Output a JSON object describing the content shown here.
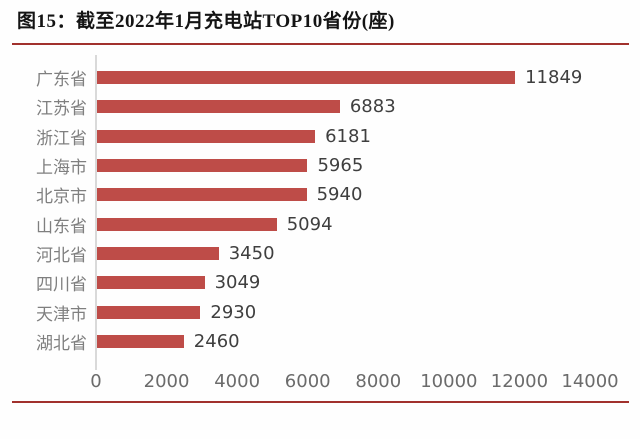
{
  "figure": {
    "title": "图15：截至2022年1月充电站TOP10省份(座)"
  },
  "colors": {
    "bar": "#be4c48",
    "divider_rule": "#a1312d",
    "axis_line": "#d9d9d9",
    "category_label": "#7f7f7f",
    "value_label": "#3f3f3f",
    "tick_label": "#6b6b6b",
    "title_text": "#141414",
    "background": "#fefefe"
  },
  "chart_data": {
    "type": "bar",
    "orientation": "horizontal",
    "title": "截至2022年1月充电站TOP10省份(座)",
    "xlabel": "",
    "ylabel": "",
    "categories": [
      "广东省",
      "江苏省",
      "浙江省",
      "上海市",
      "北京市",
      "山东省",
      "河北省",
      "四川省",
      "天津市",
      "湖北省"
    ],
    "values": [
      11849,
      6883,
      6181,
      5965,
      5940,
      5094,
      3450,
      3049,
      2930,
      2460
    ],
    "xlim": [
      0,
      14000
    ],
    "xticks": [
      0,
      2000,
      4000,
      6000,
      8000,
      10000,
      12000,
      14000
    ],
    "grid": false,
    "data_labels": true,
    "legend": null
  }
}
